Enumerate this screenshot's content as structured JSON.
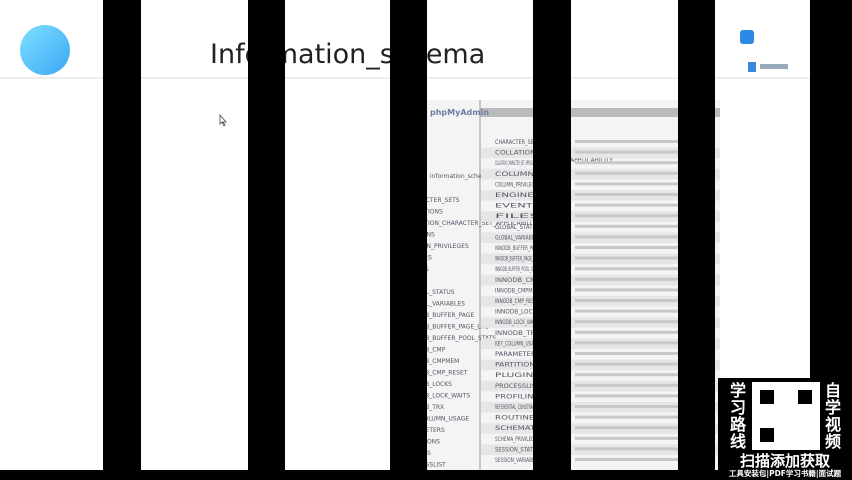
{
  "slide": {
    "title": "Information_schema"
  },
  "screenshot": {
    "app": "phpMyAdmin",
    "db": "information_schema",
    "header_cell": "APPLICABILITY",
    "tables": [
      "CHARACTER_SETS",
      "COLLATIONS",
      "COLLATION_CHARACTER_SET_APPLICABILITY",
      "COLUMNS",
      "COLUMN_PRIVILEGES",
      "ENGINES",
      "EVENTS",
      "FILES",
      "GLOBAL_STATUS",
      "GLOBAL_VARIABLES",
      "INNODB_BUFFER_PAGE",
      "INNODB_BUFFER_PAGE_LRU",
      "INNODB_BUFFER_POOL_STATS",
      "INNODB_CMP",
      "INNODB_CMPMEM",
      "INNODB_CMP_RESET",
      "INNODB_LOCKS",
      "INNODB_LOCK_WAITS",
      "INNODB_TRX",
      "KEY_COLUMN_USAGE",
      "PARAMETERS",
      "PARTITIONS",
      "PLUGINS",
      "PROCESSLIST",
      "PROFILING",
      "REFERENTIAL_CONSTRAINTS",
      "ROUTINES",
      "SCHEMATA",
      "SCHEMA_PRIVILEGES",
      "SESSION_STATUS",
      "SESSION_VARIABLES"
    ]
  },
  "ad": {
    "left": "学习路线",
    "right": "自学视频",
    "cta": "扫描添加获取",
    "footer": "工具安装包|PDF学习书籍|面试题"
  }
}
